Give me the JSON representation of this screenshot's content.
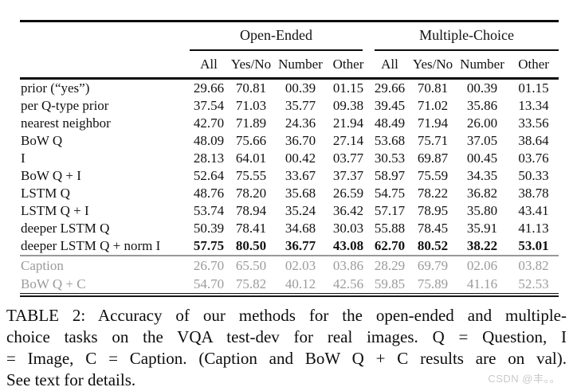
{
  "table": {
    "groups": [
      {
        "label": "Open-Ended"
      },
      {
        "label": "Multiple-Choice"
      }
    ],
    "columns": [
      "All",
      "Yes/No",
      "Number",
      "Other",
      "All",
      "Yes/No",
      "Number",
      "Other"
    ],
    "rows": [
      {
        "label": "prior (“yes”)",
        "values": [
          "29.66",
          "70.81",
          "00.39",
          "01.15",
          "29.66",
          "70.81",
          "00.39",
          "01.15"
        ]
      },
      {
        "label": "per Q-type prior",
        "values": [
          "37.54",
          "71.03",
          "35.77",
          "09.38",
          "39.45",
          "71.02",
          "35.86",
          "13.34"
        ]
      },
      {
        "label": "nearest neighbor",
        "values": [
          "42.70",
          "71.89",
          "24.36",
          "21.94",
          "48.49",
          "71.94",
          "26.00",
          "33.56"
        ]
      },
      {
        "label": "BoW Q",
        "values": [
          "48.09",
          "75.66",
          "36.70",
          "27.14",
          "53.68",
          "75.71",
          "37.05",
          "38.64"
        ]
      },
      {
        "label": "I",
        "values": [
          "28.13",
          "64.01",
          "00.42",
          "03.77",
          "30.53",
          "69.87",
          "00.45",
          "03.76"
        ]
      },
      {
        "label": "BoW Q + I",
        "values": [
          "52.64",
          "75.55",
          "33.67",
          "37.37",
          "58.97",
          "75.59",
          "34.35",
          "50.33"
        ]
      },
      {
        "label": "LSTM Q",
        "values": [
          "48.76",
          "78.20",
          "35.68",
          "26.59",
          "54.75",
          "78.22",
          "36.82",
          "38.78"
        ]
      },
      {
        "label": "LSTM Q + I",
        "values": [
          "53.74",
          "78.94",
          "35.24",
          "36.42",
          "57.17",
          "78.95",
          "35.80",
          "43.41"
        ]
      },
      {
        "label": "deeper LSTM Q",
        "values": [
          "50.39",
          "78.41",
          "34.68",
          "30.03",
          "55.88",
          "78.45",
          "35.91",
          "41.13"
        ]
      },
      {
        "label": "deeper LSTM Q + norm I",
        "bold_values": true,
        "values": [
          "57.75",
          "80.50",
          "36.77",
          "43.08",
          "62.70",
          "80.52",
          "38.22",
          "53.01"
        ]
      },
      {
        "label": "Caption",
        "muted": true,
        "sep_above": true,
        "values": [
          "26.70",
          "65.50",
          "02.03",
          "03.86",
          "28.29",
          "69.79",
          "02.06",
          "03.82"
        ]
      },
      {
        "label": "BoW Q + C",
        "muted": true,
        "values": [
          "54.70",
          "75.82",
          "40.12",
          "42.56",
          "59.85",
          "75.89",
          "41.16",
          "52.53"
        ]
      }
    ]
  },
  "caption": {
    "lines": [
      "TABLE 2: Accuracy of our methods for the open-ended and multiple-",
      "choice tasks on the VQA test-dev for real images. Q = Question, I",
      "= Image, C = Caption. (Caption and BoW Q + C results are on val).",
      "See text for details."
    ]
  },
  "watermark": "CSDN @丰。。"
}
